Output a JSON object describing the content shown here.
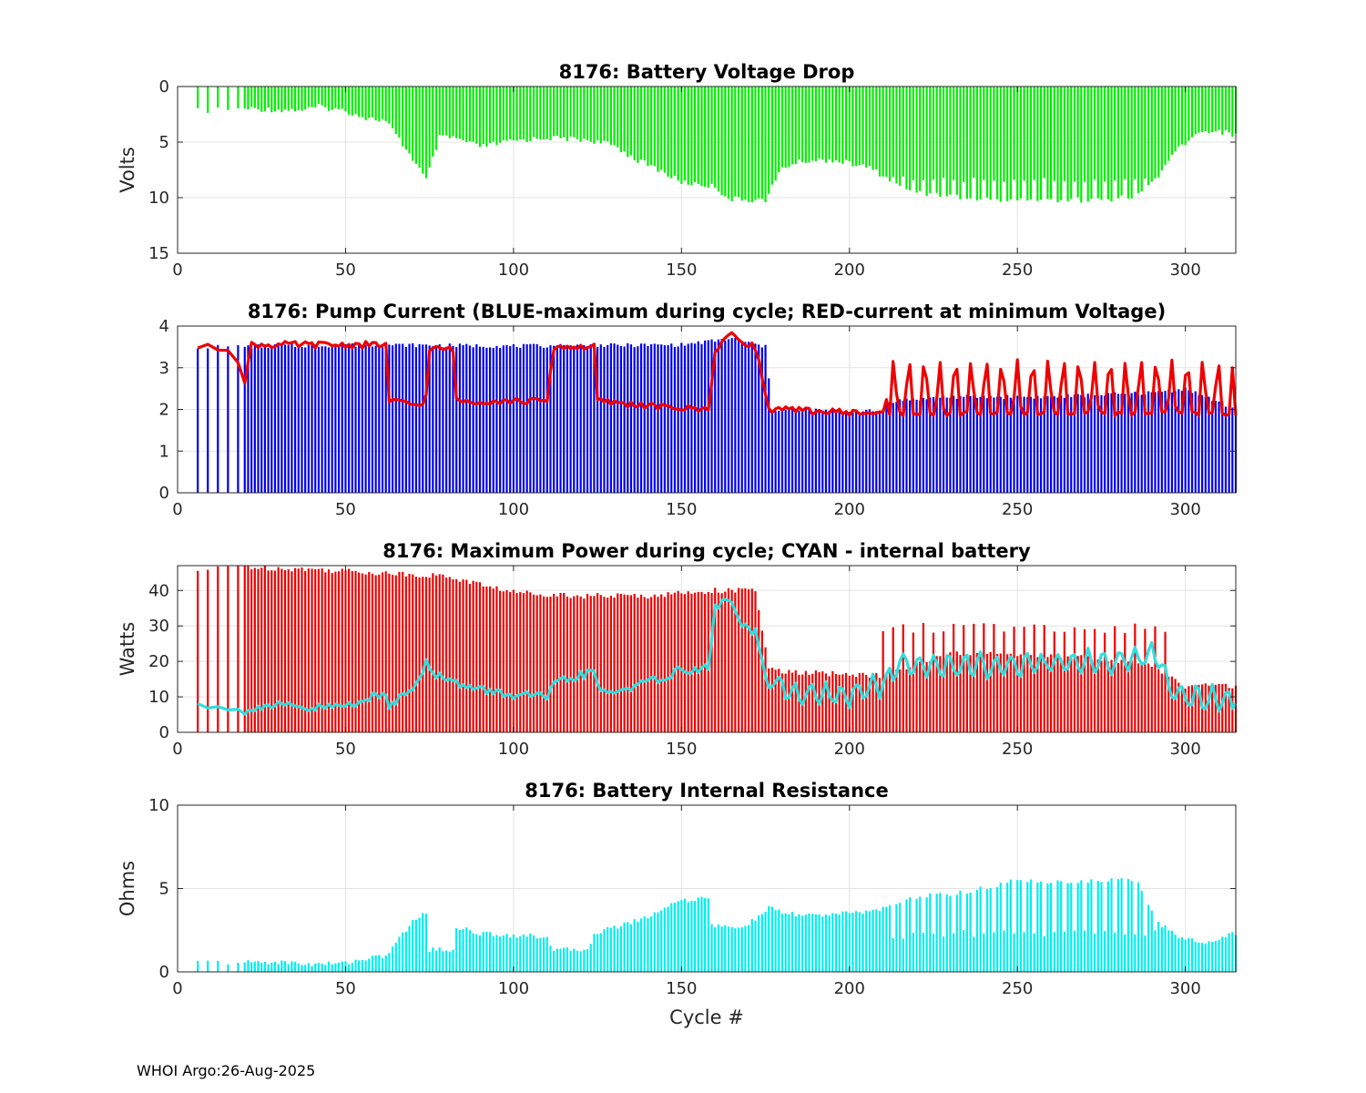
{
  "footer": "WHOI Argo:26-Aug-2025",
  "xlabel": "Cycle #",
  "xlim": [
    0,
    315
  ],
  "xticks": [
    0,
    50,
    100,
    150,
    200,
    250,
    300
  ],
  "colors": {
    "green": "#00ee00",
    "blue": "#0000ee",
    "red": "#ee0000",
    "cyan": "#00eeee",
    "cyan_line": "#33dddd",
    "red_line": "#ee0000"
  },
  "chart_data": [
    {
      "id": "voltage",
      "type": "bar",
      "title": "8176: Battery Voltage Drop",
      "ylabel": "Volts",
      "ylim": [
        0,
        15
      ],
      "y_reversed": true,
      "yticks": [
        0,
        5,
        10,
        15
      ],
      "series": [
        {
          "name": "Battery Voltage Drop",
          "color_key": "green",
          "knots": [
            [
              6,
              2.2
            ],
            [
              20,
              2.0
            ],
            [
              22,
              2.0
            ],
            [
              30,
              2.1
            ],
            [
              38,
              2.1
            ],
            [
              42,
              1.8
            ],
            [
              50,
              2.2
            ],
            [
              56,
              2.8
            ],
            [
              62,
              3.1
            ],
            [
              66,
              4.8
            ],
            [
              70,
              6.5
            ],
            [
              74,
              8.4
            ],
            [
              78,
              4.6
            ],
            [
              82,
              4.6
            ],
            [
              90,
              5.4
            ],
            [
              100,
              4.9
            ],
            [
              110,
              4.6
            ],
            [
              122,
              4.8
            ],
            [
              130,
              5.3
            ],
            [
              136,
              6.5
            ],
            [
              142,
              7.3
            ],
            [
              150,
              8.6
            ],
            [
              160,
              9.0
            ],
            [
              164,
              10.1
            ],
            [
              170,
              10.2
            ],
            [
              175,
              10.2
            ],
            [
              180,
              7.3
            ],
            [
              186,
              6.7
            ],
            [
              195,
              6.6
            ],
            [
              206,
              7.3
            ],
            [
              212,
              8.4
            ],
            [
              218,
              9.4
            ],
            [
              228,
              9.8
            ],
            [
              240,
              10.2
            ],
            [
              255,
              10.2
            ],
            [
              270,
              10.2
            ],
            [
              285,
              10.0
            ],
            [
              292,
              8.0
            ],
            [
              298,
              5.5
            ],
            [
              305,
              4.0
            ],
            [
              310,
              4.0
            ],
            [
              315,
              4.4
            ]
          ],
          "noise": 0.25,
          "spike_start": 212,
          "spike_end": 298,
          "spike_low": 8.0
        }
      ]
    },
    {
      "id": "current",
      "type": "bar",
      "title": "8176: Pump Current (BLUE-maximum during cycle; RED-current at minimum Voltage)",
      "ylabel": "",
      "ylim": [
        0,
        4
      ],
      "yticks": [
        0,
        1,
        2,
        3,
        4
      ],
      "series": [
        {
          "name": "maximum during cycle",
          "color_key": "blue",
          "knots": [
            [
              6,
              3.5
            ],
            [
              60,
              3.55
            ],
            [
              100,
              3.52
            ],
            [
              150,
              3.55
            ],
            [
              165,
              3.7
            ],
            [
              175,
              3.5
            ],
            [
              177,
              2.0
            ],
            [
              210,
              1.95
            ],
            [
              212,
              2.2
            ],
            [
              230,
              2.3
            ],
            [
              260,
              2.3
            ],
            [
              290,
              2.4
            ],
            [
              300,
              2.5
            ],
            [
              315,
              2.0
            ]
          ],
          "noise": 0.05
        },
        {
          "name": "current at minimum Voltage",
          "color_key": "red_line",
          "line": true,
          "knots": [
            [
              6,
              3.5
            ],
            [
              17,
              3.45
            ],
            [
              20,
              2.7
            ],
            [
              22,
              3.55
            ],
            [
              62,
              3.55
            ],
            [
              63,
              2.2
            ],
            [
              72,
              2.1
            ],
            [
              74,
              2.3
            ],
            [
              75,
              3.45
            ],
            [
              82,
              3.45
            ],
            [
              83,
              2.2
            ],
            [
              110,
              2.2
            ],
            [
              112,
              3.5
            ],
            [
              124,
              3.5
            ],
            [
              125,
              2.2
            ],
            [
              145,
              2.05
            ],
            [
              158,
              2.0
            ],
            [
              160,
              3.4
            ],
            [
              164,
              3.8
            ],
            [
              172,
              3.5
            ],
            [
              176,
              2.0
            ],
            [
              210,
              1.9
            ],
            [
              212,
              2.5
            ],
            [
              300,
              2.4
            ],
            [
              315,
              1.9
            ]
          ],
          "noise": 0.08,
          "osc_start": 212,
          "osc_end": 314,
          "osc_period": 4.6,
          "osc_high": 3.15,
          "osc_low": 1.9
        }
      ]
    },
    {
      "id": "power",
      "type": "bar",
      "title": "8176: Maximum Power during cycle; CYAN - internal battery",
      "ylabel": "Watts",
      "ylim": [
        0,
        47
      ],
      "yticks": [
        0,
        10,
        20,
        30,
        40
      ],
      "series": [
        {
          "name": "Maximum Power during cycle",
          "color_key": "red",
          "knots": [
            [
              6,
              45.5
            ],
            [
              20,
              47
            ],
            [
              22,
              46.5
            ],
            [
              40,
              46
            ],
            [
              60,
              45
            ],
            [
              80,
              44
            ],
            [
              100,
              39.5
            ],
            [
              120,
              38.5
            ],
            [
              140,
              38.5
            ],
            [
              160,
              40
            ],
            [
              172,
              40
            ],
            [
              176,
              18
            ],
            [
              180,
              17
            ],
            [
              210,
              16
            ],
            [
              230,
              22
            ],
            [
              250,
              22
            ],
            [
              270,
              21
            ],
            [
              290,
              19
            ],
            [
              300,
              13
            ],
            [
              315,
              13
            ]
          ],
          "noise": 0.8,
          "spike_start": 210,
          "spike_end": 296,
          "spike_high": 31
        },
        {
          "name": "internal battery",
          "color_key": "cyan_line",
          "line": true,
          "knots": [
            [
              6,
              7.8
            ],
            [
              12,
              7.8
            ],
            [
              18,
              6.5
            ],
            [
              20,
              4.5
            ],
            [
              22,
              7.2
            ],
            [
              30,
              7.5
            ],
            [
              38,
              6.8
            ],
            [
              40,
              6.0
            ],
            [
              42,
              7.0
            ],
            [
              50,
              7.5
            ],
            [
              56,
              9.5
            ],
            [
              62,
              10.5
            ],
            [
              63,
              7.5
            ],
            [
              70,
              13
            ],
            [
              74,
              19.5
            ],
            [
              76,
              16
            ],
            [
              82,
              15.5
            ],
            [
              84,
              13
            ],
            [
              100,
              10.5
            ],
            [
              110,
              10
            ],
            [
              112,
              13
            ],
            [
              116,
              15
            ],
            [
              120,
              16
            ],
            [
              124,
              17
            ],
            [
              126,
              11
            ],
            [
              130,
              11.5
            ],
            [
              140,
              14
            ],
            [
              150,
              17.5
            ],
            [
              158,
              18
            ],
            [
              160,
              35
            ],
            [
              164,
              38
            ],
            [
              168,
              30
            ],
            [
              172,
              28
            ],
            [
              176,
              12
            ],
            [
              178,
              13.5
            ],
            [
              182,
              11
            ],
            [
              200,
              10.5
            ],
            [
              210,
              13.5
            ],
            [
              214,
              19
            ],
            [
              250,
              19
            ],
            [
              280,
              20
            ],
            [
              292,
              22
            ],
            [
              295,
              12
            ],
            [
              300,
              10
            ],
            [
              305,
              9
            ],
            [
              310,
              10
            ],
            [
              315,
              8
            ]
          ],
          "noise": 1.2,
          "osc_start": 178,
          "osc_end": 314,
          "osc_period": 4.6,
          "osc_amp": 3.0
        }
      ]
    },
    {
      "id": "resistance",
      "type": "bar",
      "title": "8176: Battery Internal Resistance",
      "ylabel": "Ohms",
      "ylim": [
        0,
        10
      ],
      "yticks": [
        0,
        5,
        10
      ],
      "series": [
        {
          "name": "Battery Internal Resistance",
          "color_key": "cyan",
          "knots": [
            [
              6,
              0.6
            ],
            [
              20,
              0.55
            ],
            [
              22,
              0.6
            ],
            [
              35,
              0.55
            ],
            [
              40,
              0.45
            ],
            [
              50,
              0.55
            ],
            [
              56,
              0.8
            ],
            [
              62,
              0.95
            ],
            [
              64,
              1.5
            ],
            [
              70,
              3.0
            ],
            [
              74,
              3.6
            ],
            [
              75,
              1.35
            ],
            [
              82,
              1.3
            ],
            [
              83,
              2.7
            ],
            [
              90,
              2.3
            ],
            [
              100,
              2.2
            ],
            [
              110,
              2.1
            ],
            [
              112,
              1.3
            ],
            [
              122,
              1.35
            ],
            [
              124,
              2.3
            ],
            [
              132,
              2.8
            ],
            [
              140,
              3.3
            ],
            [
              148,
              4.2
            ],
            [
              158,
              4.5
            ],
            [
              159,
              2.8
            ],
            [
              166,
              2.6
            ],
            [
              172,
              3.1
            ],
            [
              176,
              3.9
            ],
            [
              180,
              3.5
            ],
            [
              190,
              3.4
            ],
            [
              200,
              3.5
            ],
            [
              210,
              3.8
            ],
            [
              220,
              4.5
            ],
            [
              235,
              4.8
            ],
            [
              250,
              5.5
            ],
            [
              270,
              5.4
            ],
            [
              285,
              5.6
            ],
            [
              292,
              3.0
            ],
            [
              298,
              2.0
            ],
            [
              305,
              1.8
            ],
            [
              315,
              2.3
            ]
          ],
          "noise": 0.15,
          "spike_start": 212,
          "spike_end": 292,
          "spike_low": 1.9
        }
      ]
    }
  ]
}
